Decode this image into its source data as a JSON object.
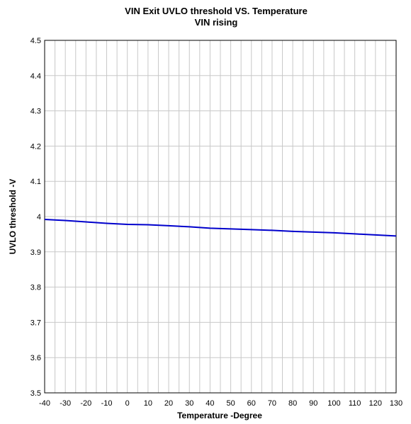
{
  "chart_data": {
    "type": "line",
    "title": "VIN Exit UVLO threshold  VS. Temperature",
    "subtitle": "VIN rising",
    "xlabel": "Temperature -Degree",
    "ylabel": "UVLO threshold -V",
    "xlim": [
      -40,
      130
    ],
    "ylim": [
      3.5,
      4.5
    ],
    "x_ticks": [
      -40,
      -30,
      -20,
      -10,
      0,
      10,
      20,
      30,
      40,
      50,
      60,
      70,
      80,
      90,
      100,
      110,
      120,
      130
    ],
    "y_ticks": [
      3.5,
      3.6,
      3.7,
      3.8,
      3.9,
      4,
      4.1,
      4.2,
      4.3,
      4.4,
      4.5
    ],
    "x_tick_labels": [
      "-40",
      "-30",
      "-20",
      "-10",
      "0",
      "10",
      "20",
      "30",
      "40",
      "50",
      "60",
      "70",
      "80",
      "90",
      "100",
      "110",
      "120",
      "130"
    ],
    "y_tick_labels": [
      "3.5",
      "3.6",
      "3.7",
      "3.8",
      "3.9",
      "4",
      "4.1",
      "4.2",
      "4.3",
      "4.4",
      "4.5"
    ],
    "grid": true,
    "minor_x_grid_step": 5,
    "series": [
      {
        "color": "#0000cc",
        "x": [
          -40,
          -30,
          -20,
          -10,
          0,
          10,
          20,
          30,
          40,
          50,
          60,
          70,
          80,
          90,
          100,
          110,
          120,
          130
        ],
        "y": [
          3.992,
          3.989,
          3.985,
          3.981,
          3.978,
          3.977,
          3.974,
          3.971,
          3.967,
          3.965,
          3.963,
          3.961,
          3.958,
          3.956,
          3.954,
          3.951,
          3.948,
          3.945
        ]
      }
    ]
  }
}
